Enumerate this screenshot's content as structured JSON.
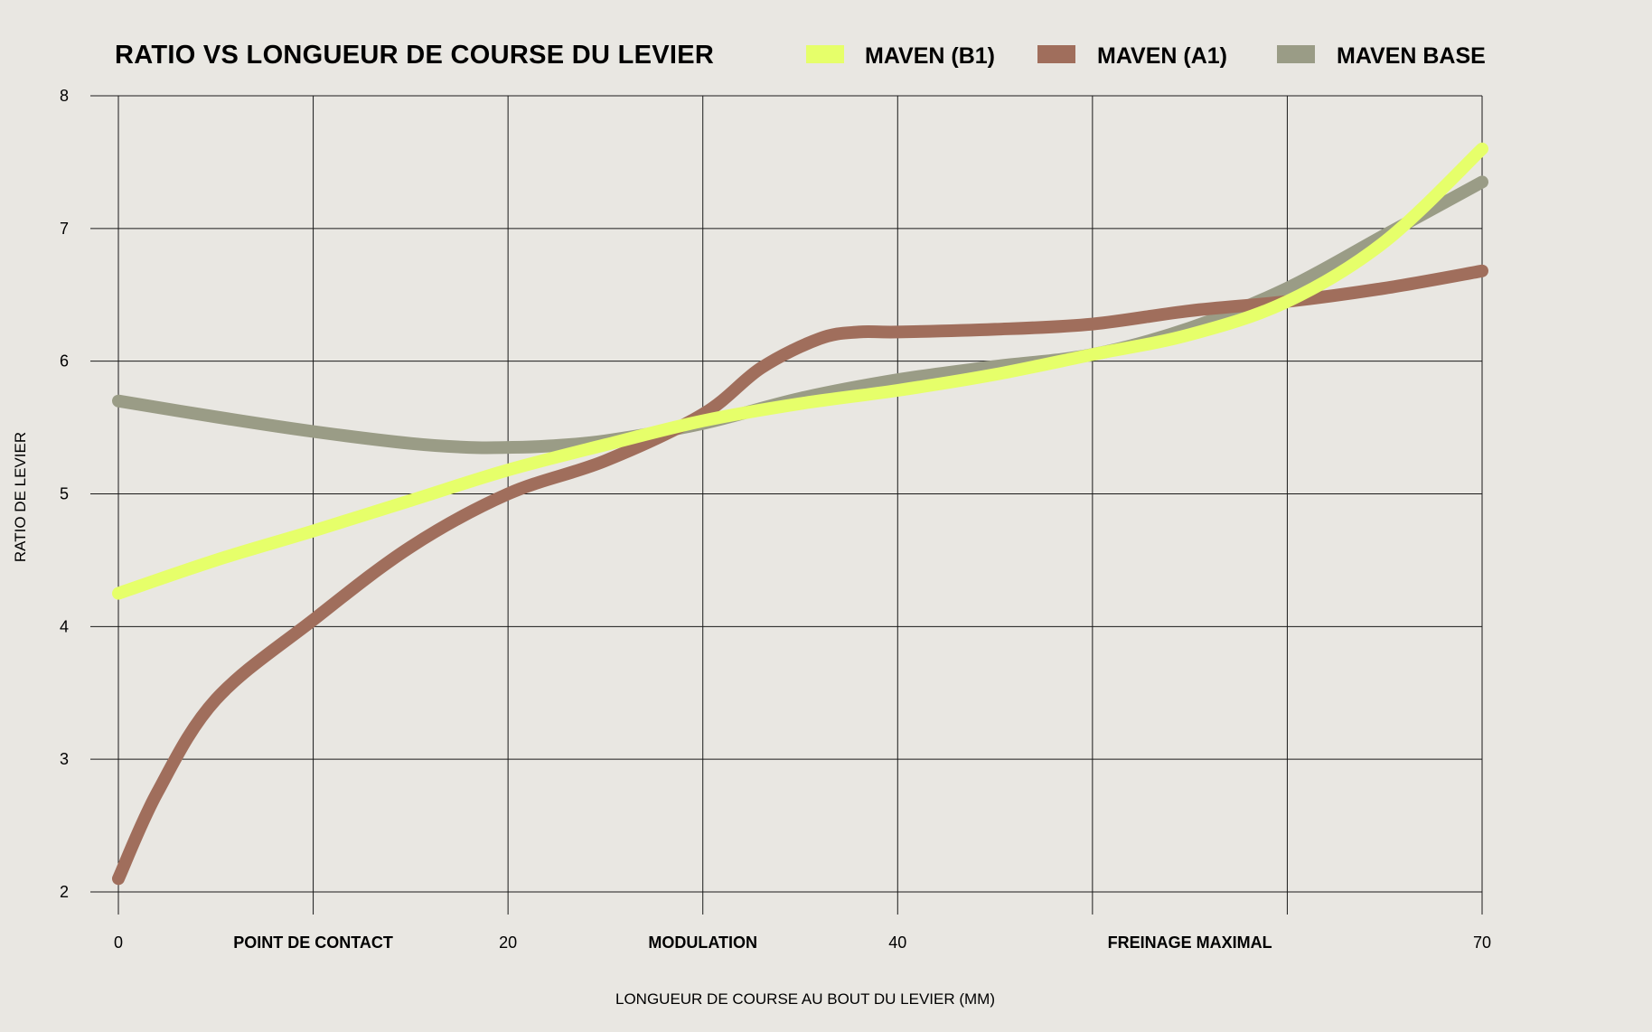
{
  "chart_data": {
    "type": "line",
    "title": "RATIO VS LONGUEUR DE COURSE DU LEVIER",
    "xlabel": "LONGUEUR DE COURSE AU BOUT DU LEVIER (MM)",
    "ylabel": "RATIO DE LEVIER",
    "xlim": [
      0,
      70
    ],
    "ylim": [
      2,
      8
    ],
    "x_ticks": [
      {
        "value": 0,
        "label": "0"
      },
      {
        "value": 10,
        "label": "POINT DE CONTACT"
      },
      {
        "value": 20,
        "label": "20"
      },
      {
        "value": 30,
        "label": "MODULATION"
      },
      {
        "value": 40,
        "label": "40"
      },
      {
        "value": 55,
        "label": "FREINAGE MAXIMAL"
      },
      {
        "value": 70,
        "label": "70"
      }
    ],
    "x_gridlines": [
      0,
      10,
      20,
      30,
      40,
      50,
      60,
      70
    ],
    "y_ticks": [
      2,
      3,
      4,
      5,
      6,
      7,
      8
    ],
    "grid": true,
    "legend_position": "top",
    "series": [
      {
        "name": "MAVEN BASE",
        "color": "#9a9c86",
        "x": [
          0,
          5,
          10,
          15,
          18,
          20,
          22,
          25,
          30,
          35,
          40,
          45,
          50,
          55,
          60,
          65,
          70
        ],
        "y": [
          5.7,
          5.58,
          5.47,
          5.38,
          5.35,
          5.35,
          5.36,
          5.4,
          5.53,
          5.72,
          5.86,
          5.96,
          6.05,
          6.25,
          6.55,
          6.95,
          7.35
        ]
      },
      {
        "name": "MAVEN (A1)",
        "color": "#a06e5c",
        "x": [
          0,
          2,
          5,
          10,
          15,
          20,
          25,
          30,
          33,
          36,
          38,
          40,
          45,
          50,
          55,
          60,
          65,
          70
        ],
        "y": [
          2.1,
          2.75,
          3.45,
          4.05,
          4.6,
          5.0,
          5.25,
          5.6,
          5.95,
          6.17,
          6.22,
          6.22,
          6.24,
          6.28,
          6.38,
          6.45,
          6.55,
          6.68
        ]
      },
      {
        "name": "MAVEN (B1)",
        "color": "#e6ff6a",
        "x": [
          0,
          5,
          10,
          15,
          20,
          25,
          30,
          35,
          40,
          45,
          50,
          55,
          60,
          65,
          70
        ],
        "y": [
          4.25,
          4.5,
          4.72,
          4.95,
          5.18,
          5.37,
          5.55,
          5.68,
          5.78,
          5.9,
          6.05,
          6.2,
          6.45,
          6.9,
          7.6
        ]
      }
    ]
  }
}
